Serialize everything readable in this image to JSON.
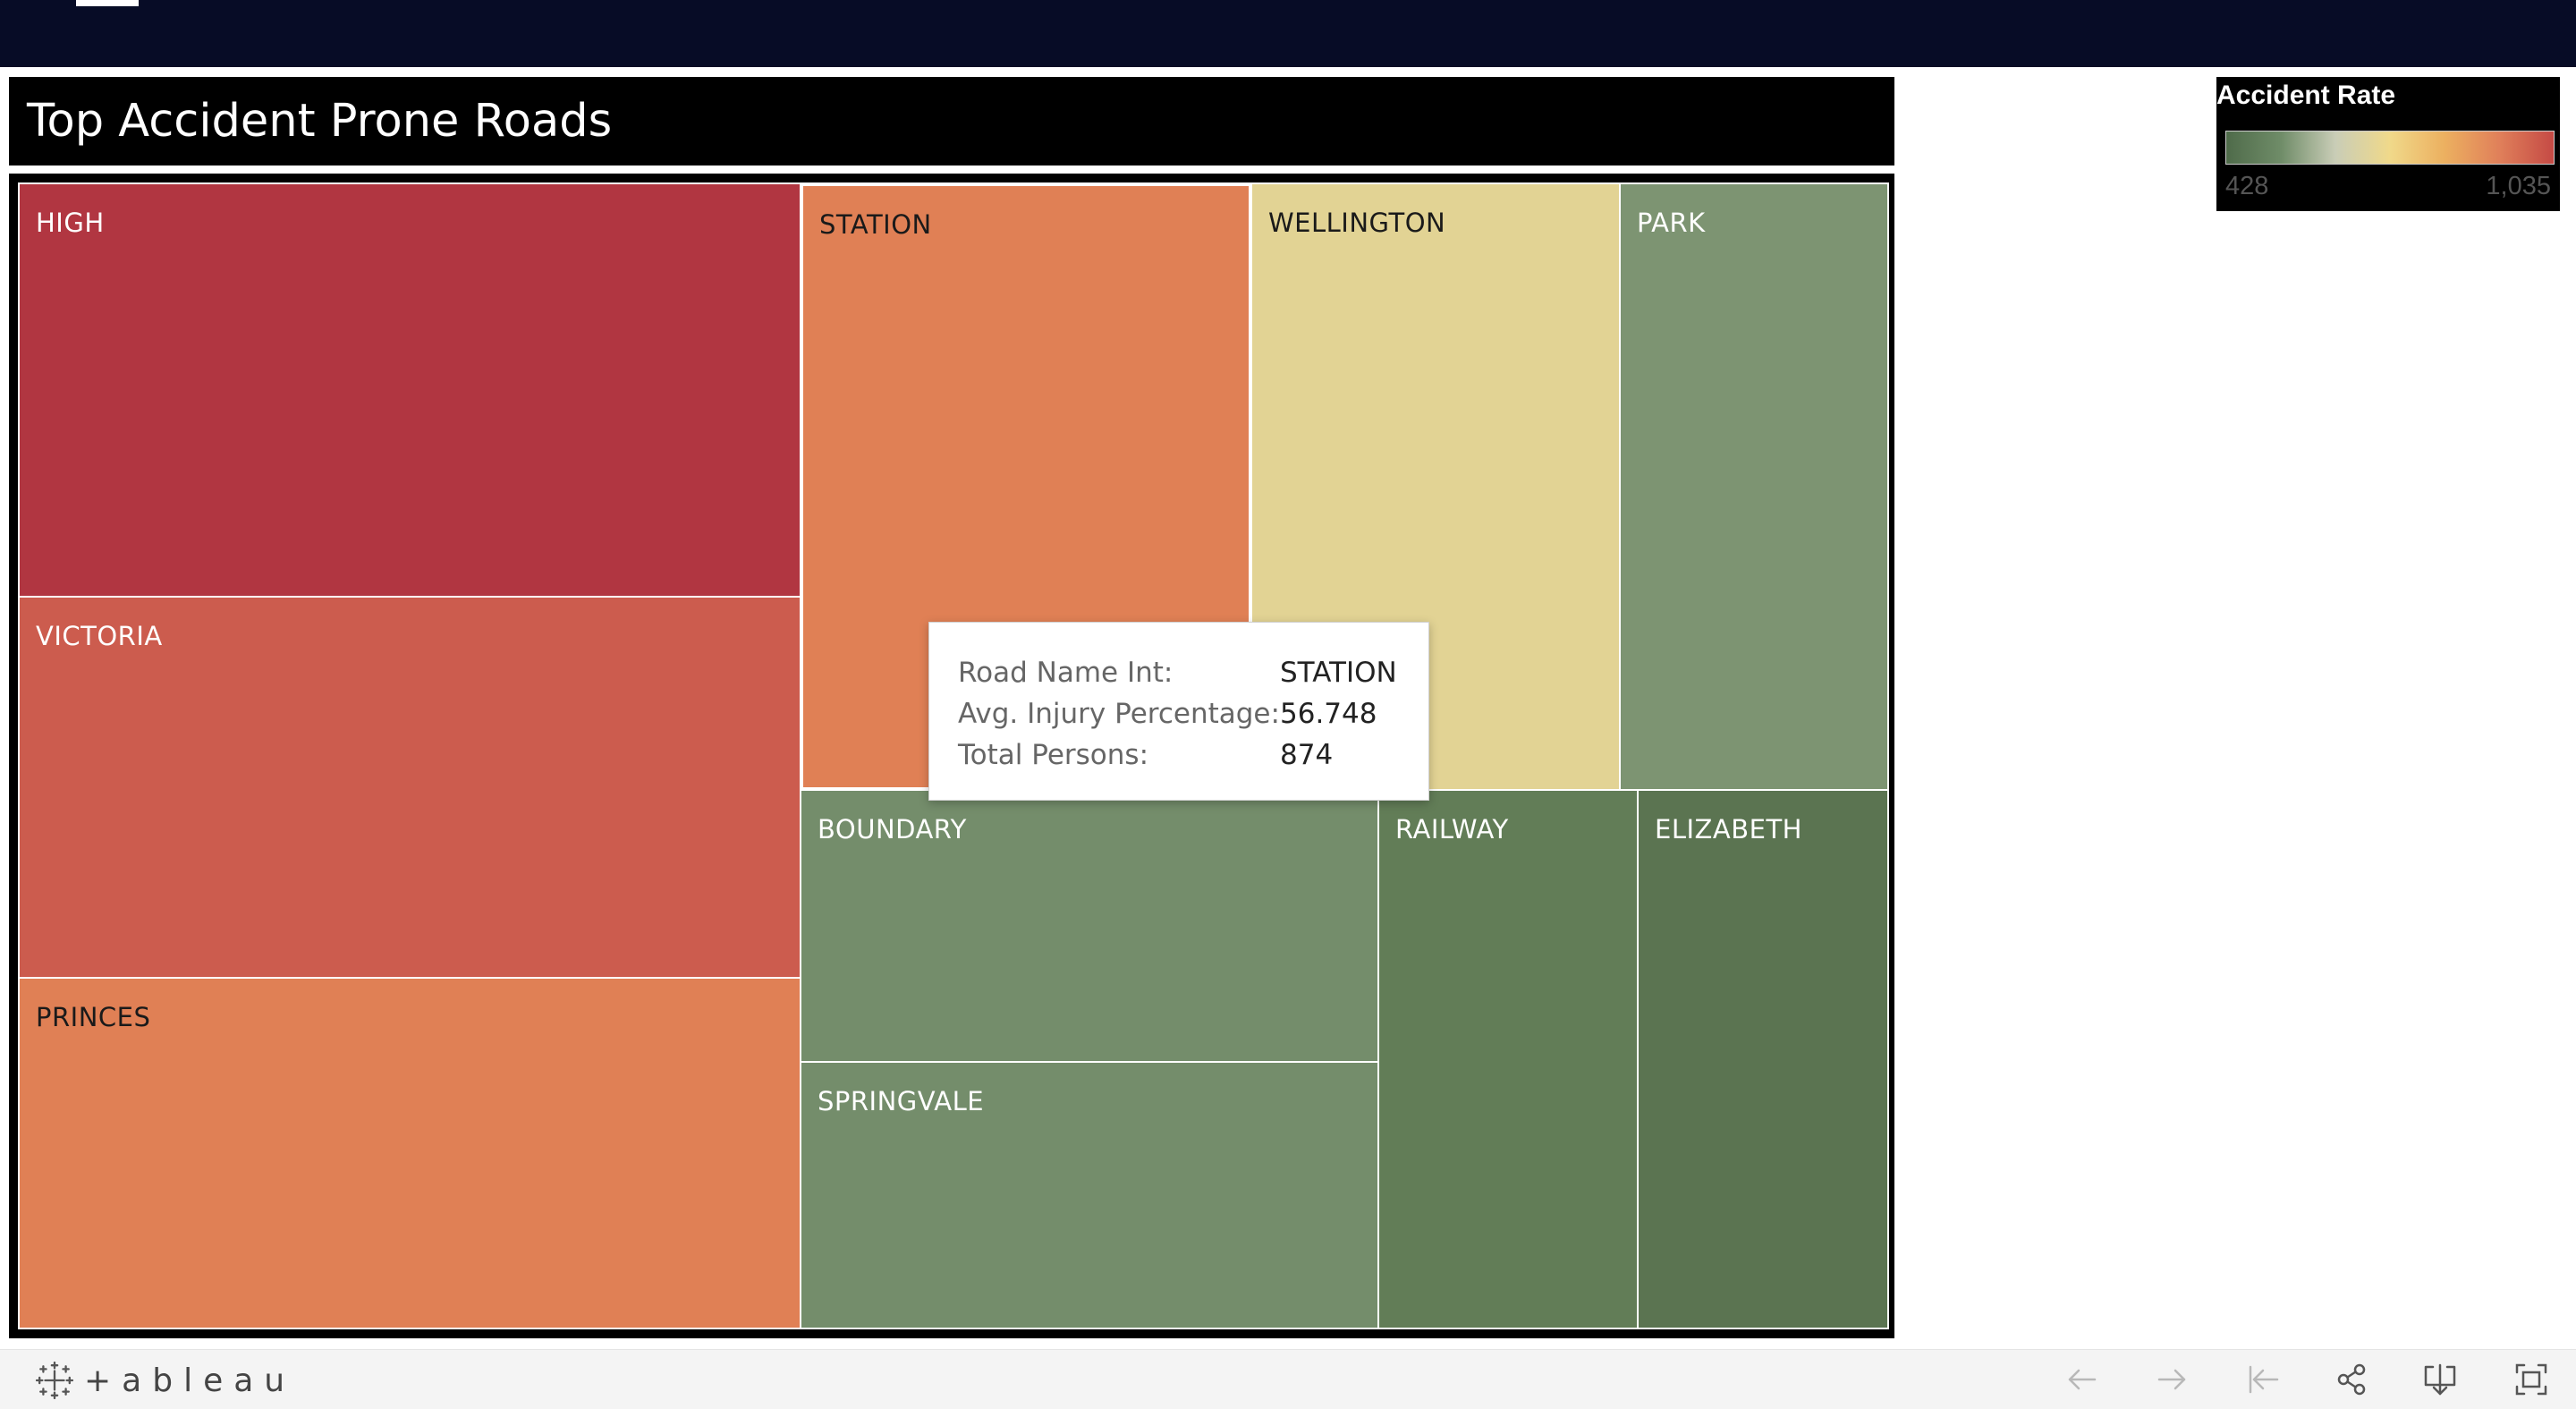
{
  "title": "Top Accident Prone Roads",
  "legend": {
    "title": "Accident Rate",
    "min_label": "428",
    "max_label": "1,035",
    "colors": [
      "#4f6b4a",
      "#6f8c68",
      "#c9cdb7",
      "#f0d98a",
      "#ecb060",
      "#e0805a",
      "#c54a45"
    ]
  },
  "chart_data": {
    "type": "treemap",
    "color_measure": "Accident Rate",
    "tiles": [
      {
        "name": "HIGH",
        "color": "#b13641",
        "label_color": "#ffffff"
      },
      {
        "name": "VICTORIA",
        "color": "#cc5c4e",
        "label_color": "#ffffff"
      },
      {
        "name": "PRINCES",
        "color": "#e08055",
        "label_color": "#1a1a1a"
      },
      {
        "name": "STATION",
        "color": "#e08055",
        "label_color": "#1a1a1a"
      },
      {
        "name": "WELLINGTON",
        "color": "#e2d394",
        "label_color": "#1a1a1a"
      },
      {
        "name": "PARK",
        "color": "#7d9472",
        "label_color": "#ffffff"
      },
      {
        "name": "BOUNDARY",
        "color": "#748d6b",
        "label_color": "#ffffff"
      },
      {
        "name": "SPRINGVALE",
        "color": "#748d6b",
        "label_color": "#ffffff"
      },
      {
        "name": "RAILWAY",
        "color": "#627d57",
        "label_color": "#ffffff"
      },
      {
        "name": "ELIZABETH",
        "color": "#5b7451",
        "label_color": "#ffffff"
      }
    ]
  },
  "tooltip": {
    "rows": [
      {
        "key": "Road Name Int:",
        "value": "STATION"
      },
      {
        "key": "Avg. Injury Percentage:",
        "value": "56.748"
      },
      {
        "key": "Total Persons:",
        "value": "874"
      }
    ]
  },
  "footer": {
    "brand": "+ableau",
    "icons": [
      "undo-icon",
      "redo-icon",
      "revert-icon",
      "share-icon",
      "download-icon",
      "fullscreen-icon"
    ]
  }
}
